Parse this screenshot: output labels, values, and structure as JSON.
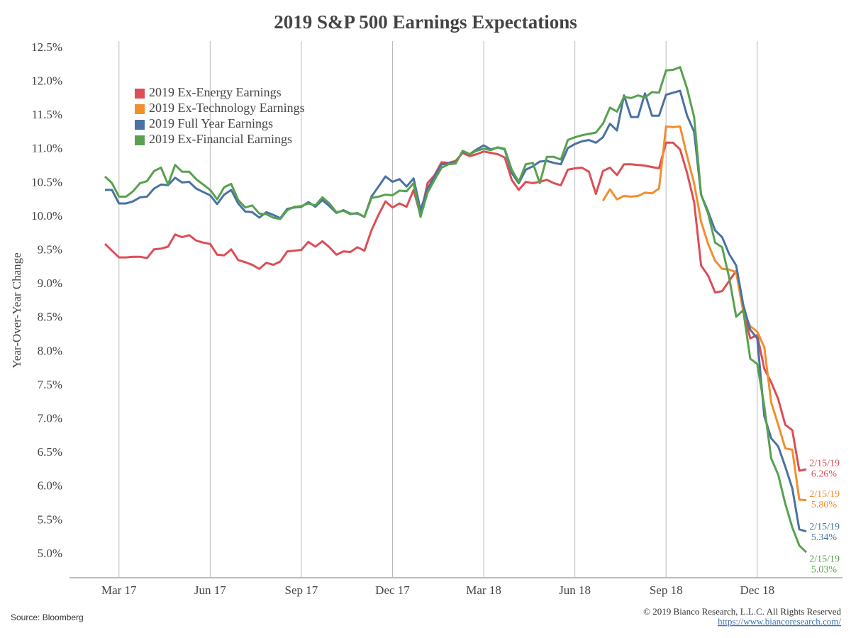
{
  "chart_data": {
    "type": "line",
    "title": "2019 S&P 500 Earnings Expectations",
    "y_label": "Year-Over-Year Change",
    "source": "Source: Bloomberg",
    "copyright": "© 2019 Bianco Research, L.L.C. All Rights Reserved",
    "url": "https://www.biancoresearch.com/",
    "categories": [
      null,
      null,
      "Mar 17",
      null,
      null,
      null,
      null,
      null,
      null,
      null,
      null,
      null,
      null,
      null,
      null,
      "Jun 17",
      null,
      null,
      null,
      null,
      null,
      null,
      null,
      null,
      null,
      null,
      null,
      null,
      "Sep 17",
      null,
      null,
      null,
      null,
      null,
      null,
      null,
      null,
      null,
      null,
      null,
      null,
      "Dec 17",
      null,
      null,
      null,
      null,
      null,
      null,
      null,
      null,
      null,
      null,
      null,
      null,
      "Mar 18",
      null,
      null,
      null,
      null,
      null,
      null,
      null,
      null,
      null,
      null,
      null,
      null,
      "Jun 18",
      null,
      null,
      null,
      null,
      null,
      null,
      null,
      null,
      null,
      null,
      null,
      null,
      "Sep 18",
      null,
      null,
      null,
      null,
      null,
      null,
      null,
      null,
      null,
      null,
      null,
      null,
      "Dec 18",
      null,
      null,
      null,
      null,
      null,
      null,
      null
    ],
    "ylim": [
      5.0,
      12.5
    ],
    "yticks": [
      {
        "value": 5.0,
        "label": "5.0%"
      },
      {
        "value": 5.5,
        "label": "5.5%"
      },
      {
        "value": 6.0,
        "label": "6.0%"
      },
      {
        "value": 6.5,
        "label": "6.5%"
      },
      {
        "value": 7.0,
        "label": "7.0%"
      },
      {
        "value": 7.5,
        "label": "7.5%"
      },
      {
        "value": 8.0,
        "label": "8.0%"
      },
      {
        "value": 8.5,
        "label": "8.5%"
      },
      {
        "value": 9.0,
        "label": "9.0%"
      },
      {
        "value": 9.5,
        "label": "9.5%"
      },
      {
        "value": 10.0,
        "label": "10.0%"
      },
      {
        "value": 10.5,
        "label": "10.5%"
      },
      {
        "value": 11.0,
        "label": "11.0%"
      },
      {
        "value": 11.5,
        "label": "11.5%"
      },
      {
        "value": 12.0,
        "label": "12.0%"
      },
      {
        "value": 12.5,
        "label": "12.5%"
      }
    ],
    "grid": true,
    "legend": "top-left",
    "series": [
      {
        "name": "2019 Ex-Energy Earnings",
        "color": "#dd4e55",
        "annotation": "2/15/19",
        "values": [
          9.6,
          9.5,
          9.4,
          9.4,
          9.41,
          9.41,
          9.39,
          9.52,
          9.53,
          9.56,
          9.74,
          9.7,
          9.73,
          9.65,
          9.62,
          9.6,
          9.44,
          9.43,
          9.52,
          9.36,
          9.33,
          9.29,
          9.23,
          9.32,
          9.29,
          9.34,
          9.49,
          9.5,
          9.51,
          9.63,
          9.56,
          9.64,
          9.55,
          9.44,
          9.49,
          9.48,
          9.55,
          9.5,
          9.8,
          10.03,
          10.23,
          10.14,
          10.2,
          10.15,
          10.4,
          10.02,
          10.5,
          10.62,
          10.81,
          10.8,
          10.83,
          10.95,
          10.9,
          10.93,
          10.97,
          10.95,
          10.93,
          10.88,
          10.55,
          10.4,
          10.52,
          10.5,
          10.52,
          10.55,
          10.5,
          10.47,
          10.7,
          10.72,
          10.73,
          10.67,
          10.34,
          10.68,
          10.73,
          10.62,
          10.78,
          10.78,
          10.77,
          10.76,
          10.74,
          10.72,
          11.1,
          11.1,
          11.0,
          10.65,
          10.22,
          9.28,
          9.13,
          8.88,
          8.9,
          9.05,
          9.2,
          8.62,
          8.2,
          8.25,
          7.75,
          7.55,
          7.3,
          6.92,
          6.84,
          6.24,
          6.26
        ],
        "value_labels": [
          null,
          null,
          null,
          null,
          null,
          null,
          null,
          null,
          null,
          null,
          null,
          null,
          null,
          null,
          null,
          null,
          null,
          null,
          null,
          null,
          null,
          null,
          null,
          null,
          null,
          null,
          null,
          null,
          null,
          null,
          null,
          null,
          null,
          null,
          null,
          null,
          null,
          null,
          null,
          null,
          null,
          null,
          null,
          null,
          null,
          null,
          null,
          null,
          null,
          null,
          null,
          null,
          null,
          null,
          null,
          null,
          null,
          null,
          null,
          null,
          null,
          null,
          null,
          null,
          null,
          null,
          null,
          null,
          null,
          null,
          null,
          null,
          null,
          null,
          null,
          null,
          null,
          null,
          null,
          null,
          null,
          null,
          null,
          null,
          null,
          null,
          null,
          null,
          null,
          null,
          null,
          null,
          null,
          null,
          null,
          null,
          null,
          null,
          null,
          null,
          "6.26%"
        ]
      },
      {
        "name": "2019 Ex-Technology Earnings",
        "color": "#f08f2e",
        "annotation": "2/15/19",
        "values": [
          null,
          null,
          null,
          null,
          null,
          null,
          null,
          null,
          null,
          null,
          null,
          null,
          null,
          null,
          null,
          null,
          null,
          null,
          null,
          null,
          null,
          null,
          null,
          null,
          null,
          null,
          null,
          null,
          null,
          null,
          null,
          null,
          null,
          null,
          null,
          null,
          null,
          null,
          null,
          null,
          null,
          null,
          null,
          null,
          null,
          null,
          null,
          null,
          null,
          null,
          null,
          null,
          null,
          null,
          null,
          null,
          null,
          null,
          null,
          null,
          null,
          null,
          null,
          null,
          null,
          null,
          null,
          null,
          null,
          null,
          null,
          10.24,
          10.41,
          10.26,
          10.31,
          10.3,
          10.31,
          10.36,
          10.35,
          10.42,
          11.34,
          11.33,
          11.34,
          10.9,
          10.5,
          9.93,
          9.6,
          9.35,
          9.23,
          9.22,
          9.18,
          8.6,
          8.38,
          8.3,
          8.07,
          7.25,
          6.92,
          6.57,
          6.55,
          5.81,
          5.8
        ],
        "value_labels": [
          null,
          null,
          null,
          null,
          null,
          null,
          null,
          null,
          null,
          null,
          null,
          null,
          null,
          null,
          null,
          null,
          null,
          null,
          null,
          null,
          null,
          null,
          null,
          null,
          null,
          null,
          null,
          null,
          null,
          null,
          null,
          null,
          null,
          null,
          null,
          null,
          null,
          null,
          null,
          null,
          null,
          null,
          null,
          null,
          null,
          null,
          null,
          null,
          null,
          null,
          null,
          null,
          null,
          null,
          null,
          null,
          null,
          null,
          null,
          null,
          null,
          null,
          null,
          null,
          null,
          null,
          null,
          null,
          null,
          null,
          null,
          null,
          null,
          null,
          null,
          null,
          null,
          null,
          null,
          null,
          null,
          null,
          null,
          null,
          null,
          null,
          null,
          null,
          null,
          null,
          null,
          null,
          null,
          null,
          null,
          null,
          null,
          null,
          null,
          null,
          "5.80%"
        ]
      },
      {
        "name": "2019 Full Year Earnings",
        "color": "#4a72a3",
        "annotation": "2/15/19",
        "values": [
          10.4,
          10.4,
          10.2,
          10.2,
          10.23,
          10.29,
          10.3,
          10.42,
          10.48,
          10.47,
          10.58,
          10.51,
          10.52,
          10.42,
          10.37,
          10.32,
          10.19,
          10.33,
          10.4,
          10.2,
          10.08,
          10.07,
          9.99,
          10.07,
          10.03,
          9.98,
          10.12,
          10.14,
          10.15,
          10.22,
          10.15,
          10.25,
          10.16,
          10.06,
          10.1,
          10.05,
          10.05,
          10.0,
          10.3,
          10.45,
          10.6,
          10.52,
          10.56,
          10.45,
          10.57,
          10.1,
          10.42,
          10.6,
          10.78,
          10.79,
          10.8,
          10.97,
          10.93,
          11.0,
          11.06,
          11.0,
          11.03,
          11.0,
          10.65,
          10.5,
          10.7,
          10.75,
          10.82,
          10.83,
          10.8,
          10.78,
          11.02,
          11.08,
          11.12,
          11.14,
          11.1,
          11.18,
          11.38,
          11.28,
          11.8,
          11.48,
          11.48,
          11.83,
          11.5,
          11.5,
          11.81,
          11.84,
          11.87,
          11.5,
          11.26,
          10.33,
          10.08,
          9.8,
          9.7,
          9.45,
          9.28,
          8.7,
          8.33,
          8.2,
          7.05,
          6.72,
          6.6,
          6.3,
          5.98,
          5.37,
          5.34
        ],
        "value_labels": [
          null,
          null,
          null,
          null,
          null,
          null,
          null,
          null,
          null,
          null,
          null,
          null,
          null,
          null,
          null,
          null,
          null,
          null,
          null,
          null,
          null,
          null,
          null,
          null,
          null,
          null,
          null,
          null,
          null,
          null,
          null,
          null,
          null,
          null,
          null,
          null,
          null,
          null,
          null,
          null,
          null,
          null,
          null,
          null,
          null,
          null,
          null,
          null,
          null,
          null,
          null,
          null,
          null,
          null,
          null,
          null,
          null,
          null,
          null,
          null,
          null,
          null,
          null,
          null,
          null,
          null,
          null,
          null,
          null,
          null,
          null,
          null,
          null,
          null,
          null,
          null,
          null,
          null,
          null,
          null,
          null,
          null,
          null,
          null,
          null,
          null,
          null,
          null,
          null,
          null,
          null,
          null,
          null,
          null,
          null,
          null,
          null,
          null,
          null,
          null,
          "5.34%"
        ]
      },
      {
        "name": "2019 Ex-Financial Earnings",
        "color": "#58a14e",
        "annotation": "2/15/19",
        "values": [
          10.6,
          10.5,
          10.3,
          10.3,
          10.38,
          10.5,
          10.53,
          10.68,
          10.73,
          10.48,
          10.77,
          10.67,
          10.67,
          10.56,
          10.48,
          10.4,
          10.26,
          10.44,
          10.49,
          10.25,
          10.14,
          10.17,
          10.05,
          10.04,
          9.99,
          9.97,
          10.1,
          10.15,
          10.16,
          10.2,
          10.17,
          10.29,
          10.2,
          10.07,
          10.09,
          10.04,
          10.06,
          10.0,
          10.28,
          10.3,
          10.33,
          10.32,
          10.39,
          10.38,
          10.5,
          10.0,
          10.36,
          10.55,
          10.73,
          10.78,
          10.79,
          10.98,
          10.93,
          10.98,
          11.01,
          10.99,
          11.03,
          11.01,
          10.7,
          10.52,
          10.78,
          10.8,
          10.5,
          10.89,
          10.89,
          10.85,
          11.14,
          11.18,
          11.21,
          11.23,
          11.25,
          11.38,
          11.62,
          11.56,
          11.78,
          11.76,
          11.8,
          11.77,
          11.85,
          11.84,
          12.17,
          12.18,
          12.22,
          11.9,
          11.48,
          10.33,
          10.05,
          9.62,
          9.55,
          9.1,
          8.52,
          8.62,
          7.9,
          7.82,
          7.2,
          6.42,
          6.18,
          5.75,
          5.4,
          5.13,
          5.03
        ],
        "value_labels": [
          null,
          null,
          null,
          null,
          null,
          null,
          null,
          null,
          null,
          null,
          null,
          null,
          null,
          null,
          null,
          null,
          null,
          null,
          null,
          null,
          null,
          null,
          null,
          null,
          null,
          null,
          null,
          null,
          null,
          null,
          null,
          null,
          null,
          null,
          null,
          null,
          null,
          null,
          null,
          null,
          null,
          null,
          null,
          null,
          null,
          null,
          null,
          null,
          null,
          null,
          null,
          null,
          null,
          null,
          null,
          null,
          null,
          null,
          null,
          null,
          null,
          null,
          null,
          null,
          null,
          null,
          null,
          null,
          null,
          null,
          null,
          null,
          null,
          null,
          null,
          null,
          null,
          null,
          null,
          null,
          null,
          null,
          null,
          null,
          null,
          null,
          null,
          null,
          null,
          null,
          null,
          null,
          null,
          null,
          null,
          null,
          null,
          null,
          null,
          null,
          "5.03%"
        ]
      }
    ]
  }
}
